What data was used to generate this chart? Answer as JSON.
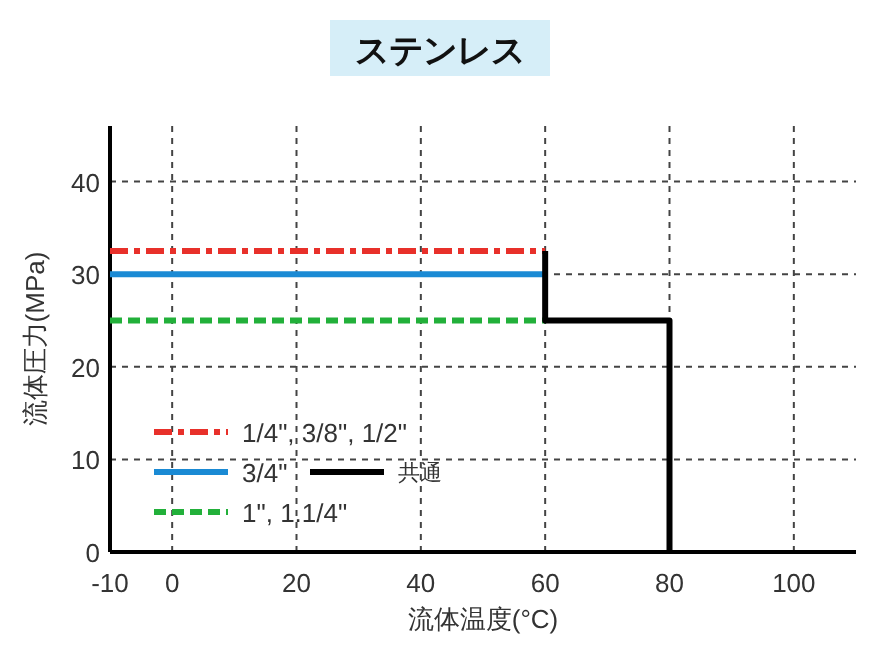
{
  "chart_data": {
    "type": "line",
    "title": "ステンレス",
    "xlabel": "流体温度(°C)",
    "ylabel": "流体圧力(MPa)",
    "xlim": [
      -10,
      110
    ],
    "xticks": [
      -10,
      0,
      20,
      40,
      60,
      80,
      100
    ],
    "ylim": [
      0,
      46
    ],
    "yticks": [
      0,
      10,
      20,
      30,
      40
    ],
    "grid": true,
    "legend": "bottom left",
    "series": [
      {
        "name": "1/4\", 3/8\", 1/2\"",
        "color": "#e8302a",
        "line_style": "dashdot",
        "x": [
          -10,
          60
        ],
        "values": [
          32.5,
          32.5
        ]
      },
      {
        "name": "3/4\"",
        "color": "#1a8ad4",
        "line_style": "solid",
        "x": [
          -10,
          60
        ],
        "values": [
          30,
          30
        ]
      },
      {
        "name": "1\", 1.1/4\"",
        "color": "#22b03a",
        "line_style": "dashed",
        "x": [
          -10,
          60
        ],
        "values": [
          25,
          25
        ]
      },
      {
        "name": "共通",
        "color": "#000000",
        "line_style": "solid",
        "x": [
          60,
          60,
          80,
          80
        ],
        "values": [
          32.5,
          25,
          25,
          0
        ]
      }
    ]
  }
}
